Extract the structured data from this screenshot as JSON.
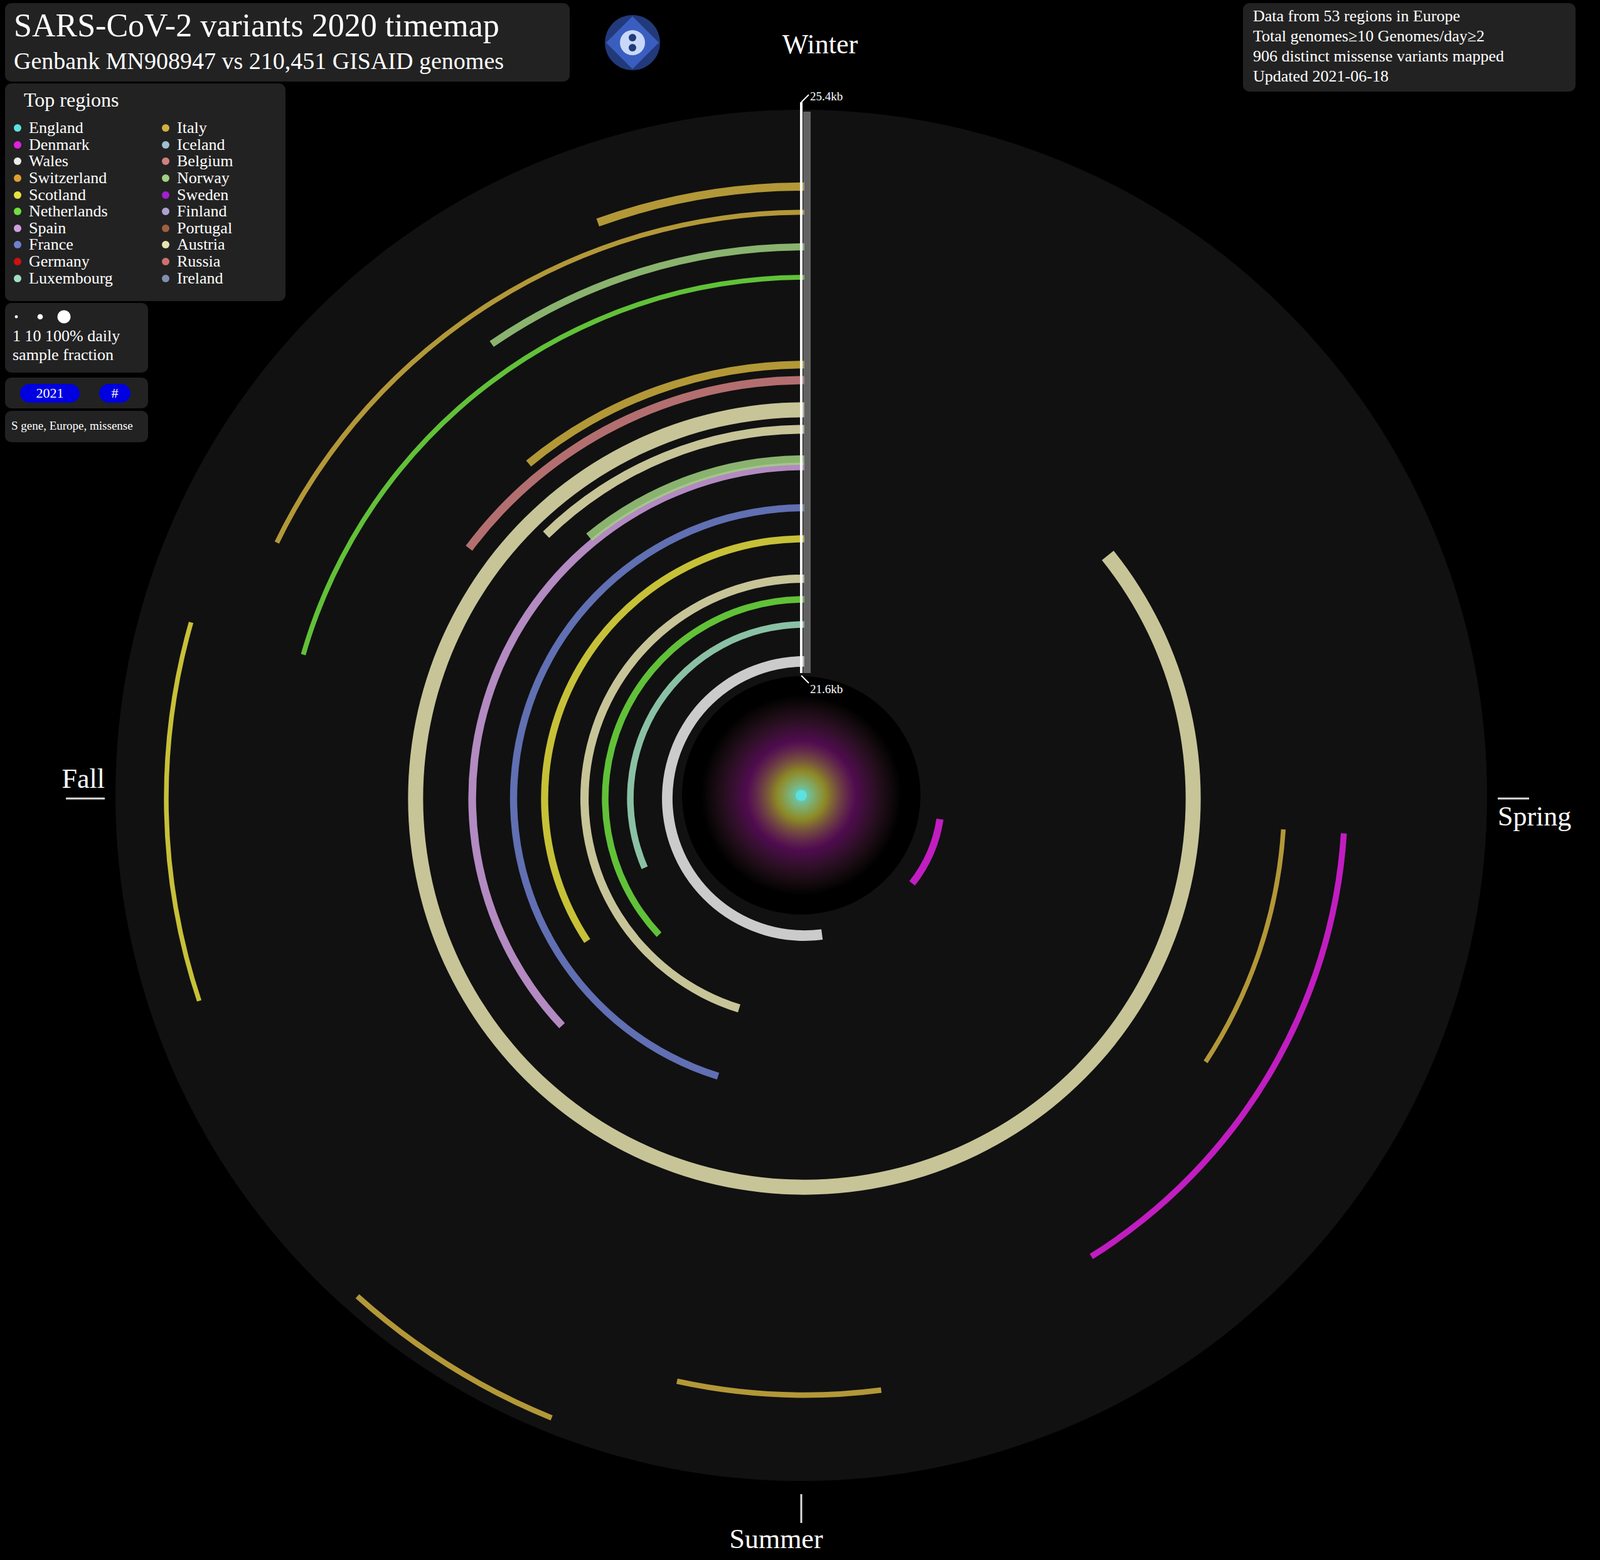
{
  "chart_data": {
    "type": "radial_timemap",
    "title": "SARS-CoV-2 variants 2020 timemap",
    "subtitle": "Genbank MN908947 vs 210,451 GISAID genomes",
    "info": [
      "Data from 53 regions in Europe",
      "Total genomes≥10 Genomes/day≥2",
      "906 distinct missense variants mapped",
      "Updated 2021-06-18"
    ],
    "legend": "top-left",
    "legend_title": "Top regions",
    "size_legend": {
      "title": "daily sample fraction",
      "ticks": [
        {
          "value": 1,
          "label": "1"
        },
        {
          "value": 10,
          "label": "10"
        },
        {
          "value": 100,
          "label": "100%"
        }
      ]
    },
    "controls": [
      "2021",
      "#"
    ],
    "filter": "S gene, Europe, missense",
    "xlim": [
      0,
      365
    ],
    "xticks": [
      {
        "value": 0,
        "label": "Winter"
      },
      {
        "value": 91.25,
        "label": "Spring"
      },
      {
        "value": 182.5,
        "label": "Summer"
      },
      {
        "value": 273.75,
        "label": "Fall"
      }
    ],
    "ylim": [
      21.6,
      25.4
    ],
    "yticks": [
      {
        "value": 21.6,
        "label": "21.6kb"
      },
      {
        "value": 25.4,
        "label": "25.4kb"
      }
    ],
    "series": [
      {
        "name": "England",
        "color": "#5ce0e0",
        "values": []
      },
      {
        "name": "Denmark",
        "color": "#e020e0",
        "values": [
          {
            "position_kb": 21.7,
            "start_day": 100,
            "end_day": 130,
            "sample_fraction": 30
          },
          {
            "position_kb": 24.43,
            "start_day": 95,
            "end_day": 150,
            "sample_fraction": 20
          }
        ]
      },
      {
        "name": "Wales",
        "color": "#ececec",
        "values": [
          {
            "position_kb": 21.7,
            "start_day": 175,
            "end_day": 365,
            "sample_fraction": 60
          }
        ]
      },
      {
        "name": "Switzerland",
        "color": "#e0a030",
        "values": []
      },
      {
        "name": "Scotland",
        "color": "#e8e040",
        "values": [
          {
            "position_kb": 22.53,
            "start_day": 240,
            "end_day": 365,
            "sample_fraction": 30
          },
          {
            "position_kb": 25.09,
            "start_day": 255,
            "end_day": 290,
            "sample_fraction": 8
          }
        ]
      },
      {
        "name": "Netherlands",
        "color": "#70e040",
        "values": [
          {
            "position_kb": 22.12,
            "start_day": 230,
            "end_day": 365,
            "sample_fraction": 25
          },
          {
            "position_kb": 24.3,
            "start_day": 290,
            "end_day": 365,
            "sample_fraction": 10
          }
        ]
      },
      {
        "name": "Spain",
        "color": "#d0a0e0",
        "values": [
          {
            "position_kb": 23.02,
            "start_day": 230,
            "end_day": 365,
            "sample_fraction": 35
          }
        ]
      },
      {
        "name": "France",
        "color": "#7080d0",
        "values": [
          {
            "position_kb": 22.74,
            "start_day": 200,
            "end_day": 365,
            "sample_fraction": 30
          }
        ]
      },
      {
        "name": "Germany",
        "color": "#d01010",
        "values": []
      },
      {
        "name": "Luxembourg",
        "color": "#a0e0c0",
        "values": [
          {
            "position_kb": 21.95,
            "start_day": 250,
            "end_day": 365,
            "sample_fraction": 25
          }
        ]
      },
      {
        "name": "Italy",
        "color": "#d0b040",
        "values": [
          {
            "position_kb": 24.914,
            "start_day": 345,
            "end_day": 365,
            "sample_fraction": 40
          },
          {
            "position_kb": 23.709,
            "start_day": 325,
            "end_day": 365,
            "sample_fraction": 35
          },
          {
            "position_kb": 25.3,
            "start_day": 205,
            "end_day": 225,
            "sample_fraction": 15
          },
          {
            "position_kb": 24.81,
            "start_day": 175,
            "end_day": 195,
            "sample_fraction": 15
          },
          {
            "position_kb": 24.74,
            "start_day": 300,
            "end_day": 365,
            "sample_fraction": 10
          },
          {
            "position_kb": 24.02,
            "start_day": 95,
            "end_day": 125,
            "sample_fraction": 8
          }
        ]
      },
      {
        "name": "Iceland",
        "color": "#a0c0d0",
        "values": []
      },
      {
        "name": "Belgium",
        "color": "#d08080",
        "values": [
          {
            "position_kb": 23.604,
            "start_day": 311,
            "end_day": 365,
            "sample_fraction": 40
          }
        ]
      },
      {
        "name": "Norway",
        "color": "#a0d080",
        "values": [
          {
            "position_kb": 24.506,
            "start_day": 330,
            "end_day": 365,
            "sample_fraction": 30
          },
          {
            "position_kb": 23.063,
            "start_day": 325,
            "end_day": 365,
            "sample_fraction": 50
          }
        ]
      },
      {
        "name": "Sweden",
        "color": "#a020d0",
        "values": []
      },
      {
        "name": "Finland",
        "color": "#b0a0d0",
        "values": []
      },
      {
        "name": "Portugal",
        "color": "#a06040",
        "values": []
      },
      {
        "name": "Austria",
        "color": "#e8e4b0",
        "values": [
          {
            "position_kb": 23.403,
            "start_day": 52,
            "end_day": 365,
            "sample_fraction": 100
          },
          {
            "position_kb": 23.271,
            "start_day": 320,
            "end_day": 365,
            "sample_fraction": 45
          },
          {
            "position_kb": 22.26,
            "start_day": 200,
            "end_day": 365,
            "sample_fraction": 40
          }
        ]
      },
      {
        "name": "Russia",
        "color": "#d07070",
        "values": []
      },
      {
        "name": "Ireland",
        "color": "#8090b0",
        "values": []
      }
    ]
  }
}
